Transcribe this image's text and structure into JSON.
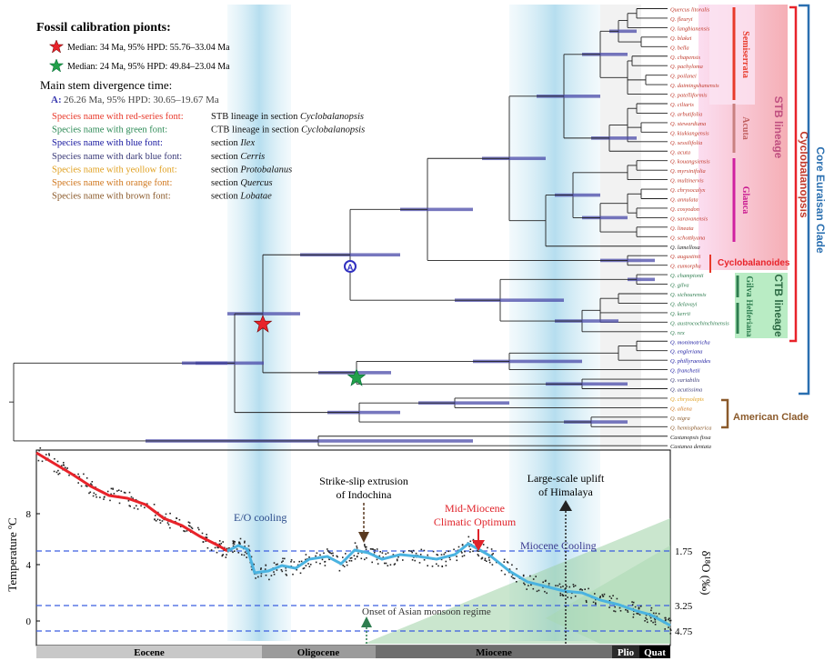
{
  "legend": {
    "title": "Fossil  calibration pionts:",
    "calib_red": "Median: 34 Ma, 95% HPD: 55.76–33.04 Ma",
    "calib_green": "Median: 24 Ma, 95% HPD: 49.84–23.04 Ma",
    "stem_title": "Main stem divergence time:",
    "stem_a_label": "A:",
    "stem_a_value": "26.26 Ma, 95% HPD: 30.65–19.67 Ma",
    "fonts": [
      {
        "left": "Species name with red-series font:",
        "right": "STB lineage in section ",
        "italic": "Cyclobalanopsis",
        "color": "#e8392b"
      },
      {
        "left": "Species name with green font:",
        "right": "CTB lineage in section ",
        "italic": "Cyclobalanopsis",
        "color": "#2e8b57"
      },
      {
        "left": "Species name with blue font:",
        "right": "section ",
        "italic": "Ilex",
        "color": "#1a1aa0"
      },
      {
        "left": "Species name with dark blue font:",
        "right": "section ",
        "italic": "Cerris",
        "color": "#3a3a78"
      },
      {
        "left": "Species name with yeollow font:",
        "right": "section ",
        "italic": "Protobalanus",
        "color": "#e0a020"
      },
      {
        "left": "Species name with orange font:",
        "right": "section ",
        "italic": "Quercus",
        "color": "#d07820"
      },
      {
        "left": "Species name with brown font:",
        "right": "section ",
        "italic": "Lobatae",
        "color": "#8b5a2b"
      }
    ]
  },
  "tips": [
    {
      "name": "Quercus litoralis",
      "color": "#c0392b"
    },
    {
      "name": "Q. fleuryi",
      "color": "#c0392b"
    },
    {
      "name": "Q. langbianensis",
      "color": "#c0392b"
    },
    {
      "name": "Q. blakei",
      "color": "#c0392b"
    },
    {
      "name": "Q. bella",
      "color": "#c0392b"
    },
    {
      "name": "Q. chapensis",
      "color": "#c0392b"
    },
    {
      "name": "Q. pachyloma",
      "color": "#c0392b"
    },
    {
      "name": "Q. poilanei",
      "color": "#c0392b"
    },
    {
      "name": "Q. daimingshanensis",
      "color": "#c0392b"
    },
    {
      "name": "Q. patelliformis",
      "color": "#c0392b"
    },
    {
      "name": "Q. ciliaris",
      "color": "#c0392b"
    },
    {
      "name": "Q. arbutifolia",
      "color": "#c0392b"
    },
    {
      "name": "Q. stewardiana",
      "color": "#c0392b"
    },
    {
      "name": "Q. kiukiangensis",
      "color": "#c0392b"
    },
    {
      "name": "Q. sessilifolia",
      "color": "#c0392b"
    },
    {
      "name": "Q. acuta",
      "color": "#c0392b"
    },
    {
      "name": "Q. kouangsiensis",
      "color": "#c0392b"
    },
    {
      "name": "Q. myrsinifolia",
      "color": "#c0392b"
    },
    {
      "name": "Q. multinervis",
      "color": "#c0392b"
    },
    {
      "name": "Q. chrysocalyx",
      "color": "#c0392b"
    },
    {
      "name": "Q. annulata",
      "color": "#c0392b"
    },
    {
      "name": "Q. cosyodon",
      "color": "#c0392b"
    },
    {
      "name": "Q. saravanensis",
      "color": "#c0392b"
    },
    {
      "name": "Q. lineata",
      "color": "#c0392b"
    },
    {
      "name": "Q. schottkyana",
      "color": "#c0392b"
    },
    {
      "name": "Q. lamellosa",
      "color": "#222222"
    },
    {
      "name": "Q. augustinii",
      "color": "#c0392b"
    },
    {
      "name": "Q. eumorpha",
      "color": "#c0392b"
    },
    {
      "name": "Q. championii",
      "color": "#2e7d4f"
    },
    {
      "name": "Q. gilva",
      "color": "#2e7d4f"
    },
    {
      "name": "Q. sichourensis",
      "color": "#2e7d4f"
    },
    {
      "name": "Q. delavayi",
      "color": "#2e7d4f"
    },
    {
      "name": "Q. kerrii",
      "color": "#2e7d4f"
    },
    {
      "name": "Q. austrocochinchinensis",
      "color": "#2e7d4f"
    },
    {
      "name": "Q. rex",
      "color": "#2e7d4f"
    },
    {
      "name": "Q. monimotricha",
      "color": "#1a1aa0"
    },
    {
      "name": "Q. engleriana",
      "color": "#1a1aa0"
    },
    {
      "name": "Q. phillyraeoides",
      "color": "#1a1aa0"
    },
    {
      "name": "Q. franchetii",
      "color": "#1a1aa0"
    },
    {
      "name": "Q. variabilis",
      "color": "#3a3a78"
    },
    {
      "name": "Q. acutissima",
      "color": "#3a3a78"
    },
    {
      "name": "Q. chrysolepis",
      "color": "#e0a020"
    },
    {
      "name": "Q. aliena",
      "color": "#d07820"
    },
    {
      "name": "Q. nigra",
      "color": "#8b5a2b"
    },
    {
      "name": "Q. hemisphaerica",
      "color": "#8b5a2b"
    },
    {
      "name": "Castanopsis fissa",
      "color": "#222222"
    },
    {
      "name": "Castanea dentata",
      "color": "#222222"
    }
  ],
  "clades": {
    "semicerrata": "Semiserrata",
    "acuta": "Acuta",
    "glauca": "Glauca",
    "cyclobalanoides": "Cyclobalanoides",
    "stb": "STB lineage",
    "gilva": "Gilva",
    "helferiana": "Helferiana",
    "ctb": "CTB lineage",
    "cyclobalanopsis": "Cyclobalanopsis",
    "core_clade": "Core Euraisan Clade",
    "american": "American Clade",
    "node_a": "A"
  },
  "plot": {
    "ylabel_left": "Temperature  ºC",
    "ylabel_right": "δ¹⁸O (‰)",
    "left_ticks": [
      "8",
      "4",
      "0"
    ],
    "right_ticks": [
      "1.75",
      "3.25",
      "4.75"
    ],
    "annotations": {
      "eo": "E/O cooling",
      "strike1": "Strike-slip extrusion",
      "strike2": "of Indochina",
      "mid1": "Mid-Miocene",
      "mid2": "Climatic Optimum",
      "uplift1": "Large-scale uplift",
      "uplift2": "of Himalaya",
      "miocene_cooling": "Miocene Cooling",
      "monsoon": "Onset of Asian monsoon regime"
    },
    "epochs": [
      "Eocene",
      "Oligocene",
      "Miocene",
      "Plio",
      "Quat"
    ],
    "colors": {
      "red": "#e8232a",
      "blue": "#4ab3e0",
      "band": "#bfe2f0"
    }
  }
}
